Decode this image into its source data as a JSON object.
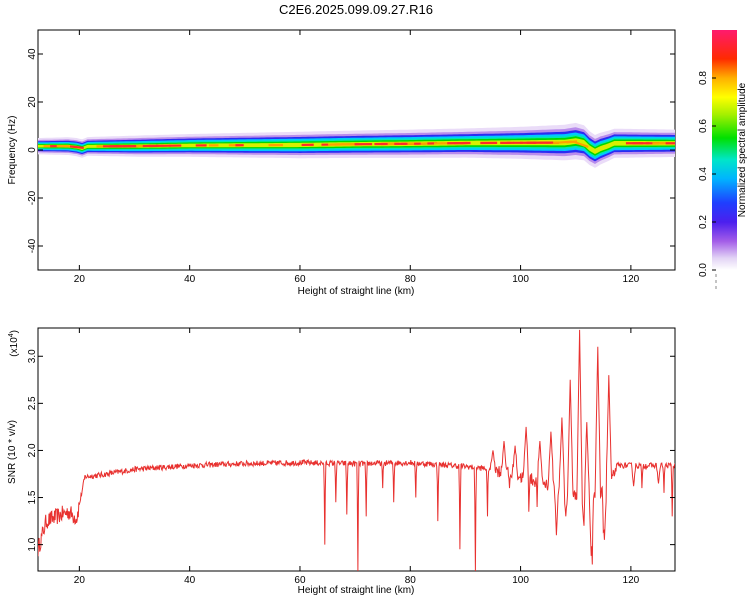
{
  "title": "C2E6.2025.099.09.27.R16",
  "chart_data": [
    {
      "type": "heatmap",
      "xlabel": "Height of straight line (km)",
      "ylabel": "Frequency (Hz)",
      "xlim": [
        12.5,
        128
      ],
      "ylim": [
        -50,
        50
      ],
      "xticks": [
        "20",
        "40",
        "60",
        "80",
        "100",
        "120"
      ],
      "yticks": [
        "-40",
        "-20",
        "0",
        "20",
        "40"
      ],
      "colorbar": {
        "label": "Normalized spectral amplitude",
        "range": [
          0,
          1
        ],
        "ticks": [
          "0.0",
          "0.2",
          "0.4",
          "0.6",
          "0.8"
        ]
      },
      "band": {
        "centers": [
          [
            13,
            1.6
          ],
          [
            18,
            1.6
          ],
          [
            19.5,
            1.2
          ],
          [
            20.5,
            0.6
          ],
          [
            21.5,
            1.5
          ],
          [
            30,
            1.6
          ],
          [
            40,
            1.9
          ],
          [
            50,
            2.0
          ],
          [
            60,
            2.1
          ],
          [
            70,
            2.4
          ],
          [
            80,
            2.6
          ],
          [
            90,
            2.9
          ],
          [
            100,
            3.0
          ],
          [
            108,
            3.1
          ],
          [
            110,
            3.7
          ],
          [
            111.5,
            3.0
          ],
          [
            112.5,
            0.8
          ],
          [
            113.5,
            -0.6
          ],
          [
            114.5,
            0.6
          ],
          [
            116,
            1.8
          ],
          [
            117,
            2.8
          ],
          [
            128,
            2.8
          ]
        ],
        "halfwidths": [
          [
            13,
            1.8
          ],
          [
            30,
            2.3
          ],
          [
            60,
            2.9
          ],
          [
            90,
            3.2
          ],
          [
            100,
            3.5
          ],
          [
            110,
            4.0
          ],
          [
            117,
            3.2
          ],
          [
            128,
            3.0
          ]
        ]
      }
    },
    {
      "type": "line",
      "xlabel": "Height of straight line (km)",
      "ylabel": "SNR (10 * v/v)",
      "multiplier": "(x10",
      "multiplier_exp": "4",
      "multiplier_close": ")",
      "xlim": [
        12.5,
        128
      ],
      "ylim": [
        0.72,
        3.3
      ],
      "xticks": [
        "20",
        "40",
        "60",
        "80",
        "100",
        "120"
      ],
      "yticks": [
        "1.0",
        "1.5",
        "2.0",
        "2.5",
        "3.0"
      ],
      "series": [
        {
          "color": "#e8312f",
          "baseline": [
            [
              12.5,
              0.95
            ],
            [
              14,
              1.25
            ],
            [
              16,
              1.3
            ],
            [
              18,
              1.35
            ],
            [
              19.5,
              1.28
            ],
            [
              21,
              1.72
            ],
            [
              24,
              1.74
            ],
            [
              30,
              1.8
            ],
            [
              40,
              1.84
            ],
            [
              50,
              1.86
            ],
            [
              60,
              1.87
            ],
            [
              70,
              1.86
            ],
            [
              80,
              1.87
            ],
            [
              90,
              1.83
            ],
            [
              95,
              1.8
            ],
            [
              100,
              1.72
            ],
            [
              104,
              1.66
            ],
            [
              107,
              1.6
            ],
            [
              109,
              1.55
            ],
            [
              112,
              1.45
            ],
            [
              116,
              1.58
            ],
            [
              117.5,
              1.84
            ],
            [
              128,
              1.84
            ]
          ],
          "spikes": [
            [
              64.5,
              1.0
            ],
            [
              66.5,
              1.45
            ],
            [
              68.5,
              1.32
            ],
            [
              70.5,
              0.72
            ],
            [
              72,
              1.3
            ],
            [
              75,
              1.6
            ],
            [
              77,
              1.45
            ],
            [
              81,
              1.5
            ],
            [
              85,
              1.25
            ],
            [
              89,
              0.95
            ],
            [
              91.8,
              0.72
            ],
            [
              94,
              1.3
            ],
            [
              98,
              1.6
            ],
            [
              101.5,
              1.35
            ],
            [
              103,
              1.4
            ],
            [
              106.5,
              1.5
            ],
            [
              113,
              0.72
            ],
            [
              115,
              1.2
            ],
            [
              122,
              1.6
            ],
            [
              126,
              1.55
            ],
            [
              127.5,
              1.3
            ]
          ],
          "peaks": [
            [
              95,
              2.0
            ],
            [
              97,
              2.1
            ],
            [
              99,
              2.05
            ],
            [
              101,
              2.25
            ],
            [
              103.5,
              2.1
            ],
            [
              105.5,
              2.2
            ],
            [
              107.5,
              2.35
            ],
            [
              109,
              2.75
            ],
            [
              110.7,
              3.28
            ],
            [
              112,
              2.3
            ],
            [
              114,
              3.1
            ],
            [
              116,
              2.8
            ]
          ],
          "dips": [
            [
              106.5,
              1.1
            ],
            [
              108.2,
              1.3
            ],
            [
              111.5,
              1.2
            ],
            [
              112.8,
              0.88
            ],
            [
              115.2,
              1.05
            ],
            [
              120.5,
              1.62
            ],
            [
              125,
              1.65
            ]
          ]
        }
      ]
    }
  ]
}
